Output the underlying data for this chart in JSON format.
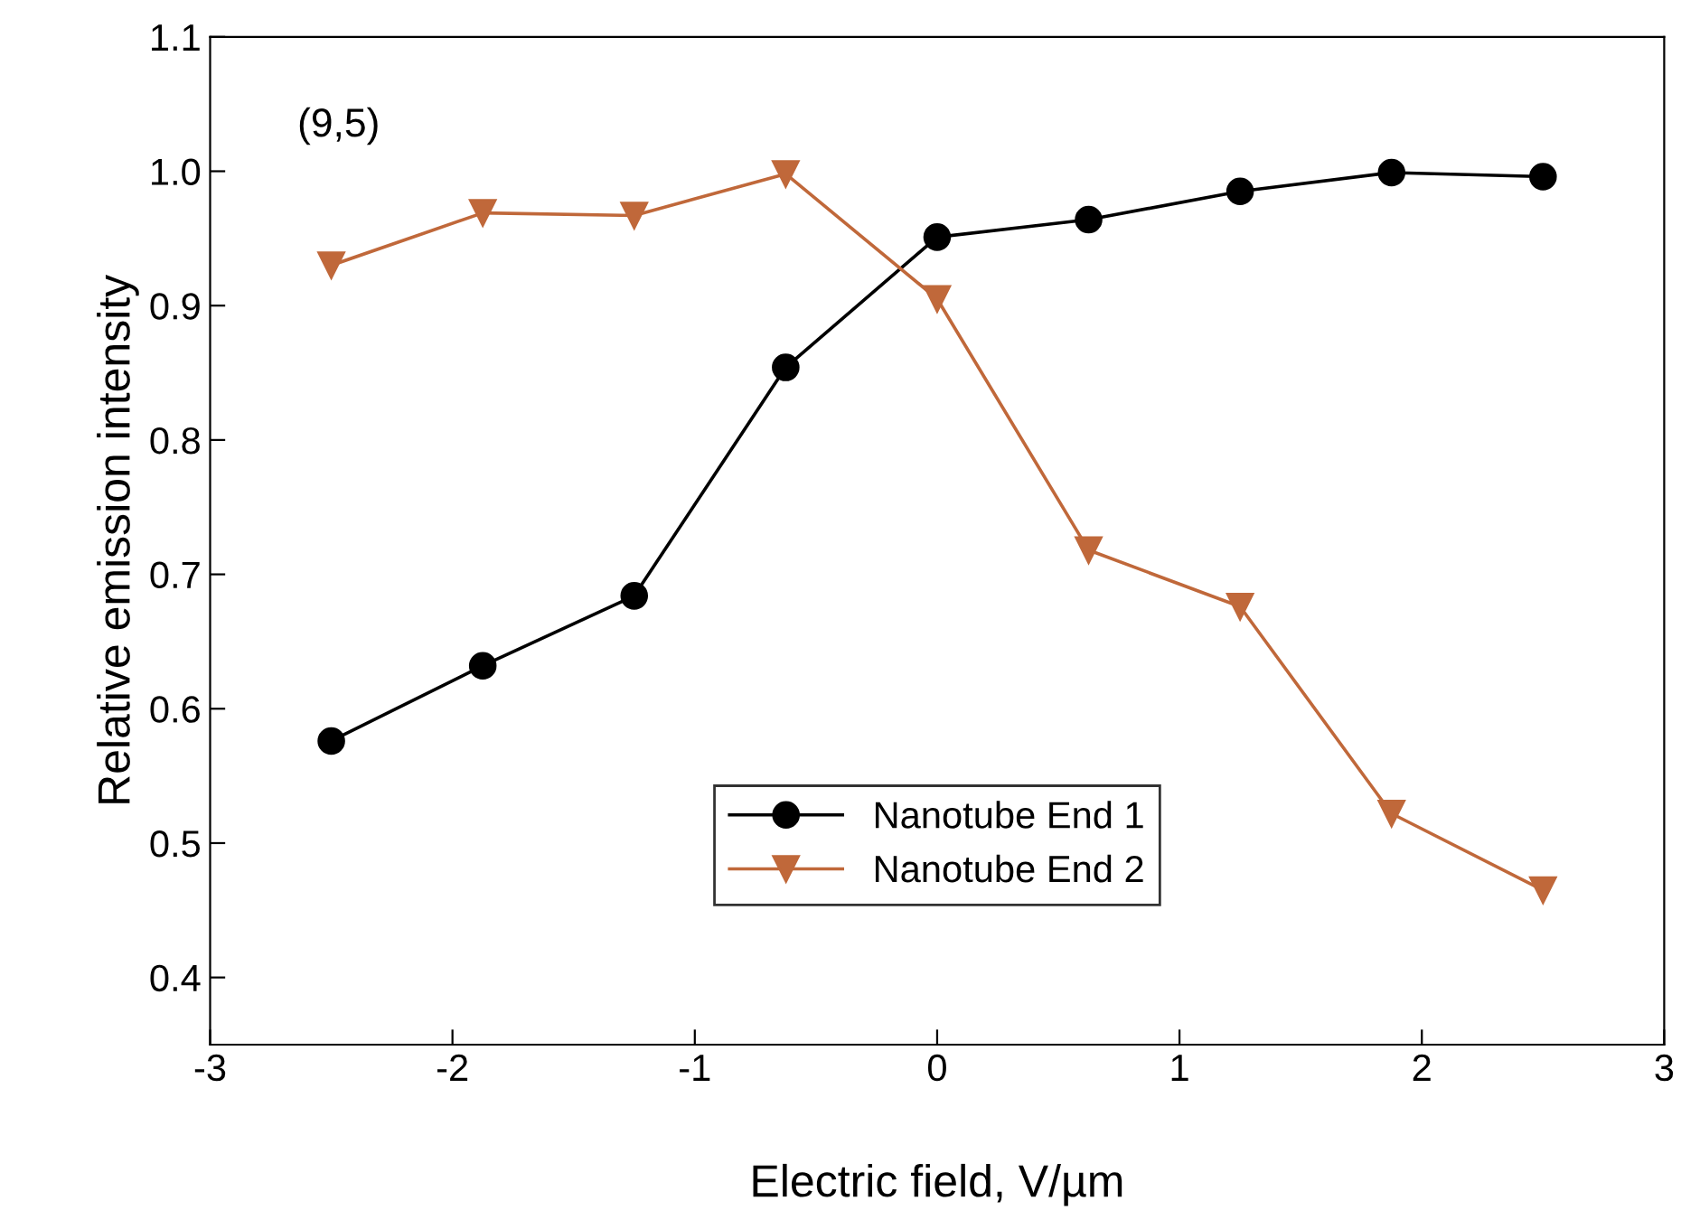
{
  "chart_data": {
    "type": "line",
    "xlabel": "Electric field, V/µm",
    "ylabel": "Relative emission intensity",
    "annotations": [
      "(9,5)"
    ],
    "x": [
      -2.5,
      -1.875,
      -1.25,
      -0.625,
      0,
      0.625,
      1.25,
      1.875,
      2.5
    ],
    "series": [
      {
        "name": "Nanotube End 1",
        "color": "#000000",
        "marker": "circle",
        "values": [
          0.576,
          0.632,
          0.684,
          0.854,
          0.951,
          0.964,
          0.985,
          0.999,
          0.996
        ]
      },
      {
        "name": "Nanotube End 2",
        "color": "#c0683a",
        "marker": "triangle",
        "values": [
          0.93,
          0.969,
          0.967,
          0.998,
          0.905,
          0.718,
          0.676,
          0.522,
          0.465
        ]
      }
    ],
    "xlim": [
      -3,
      3
    ],
    "xticks": [
      -3,
      -2,
      -1,
      0,
      1,
      2,
      3
    ],
    "ylim": [
      0.35,
      1.1
    ],
    "yticks": [
      0.4,
      0.5,
      0.6,
      0.7,
      0.8,
      0.9,
      {
        "value": 1.0,
        "label": "1.0"
      },
      1.1
    ],
    "grid": false,
    "legend": "bottom",
    "line_style": "solid"
  }
}
